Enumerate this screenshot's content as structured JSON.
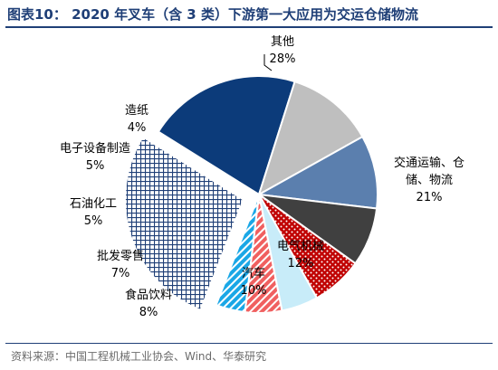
{
  "title": "图表10： 2020 年叉车（含 3 类）下游第一大应用为交运仓储物流",
  "source": "资料来源：中国工程机械工业协会、Wind、华泰研究",
  "chart_data": {
    "type": "pie",
    "title": "图表10： 2020 年叉车（含 3 类）下游第一大应用为交运仓储物流",
    "unit": "%",
    "slices": [
      {
        "label": "交通运输、仓储、物流",
        "lines": [
          "交通运输、仓",
          "储、物流"
        ],
        "value": 21,
        "value_label": "21%",
        "color": "#0c3b7a",
        "pattern": "solid"
      },
      {
        "label": "电气机械",
        "lines": [
          "电气机械"
        ],
        "value": 12,
        "value_label": "12%",
        "color": "#bfbfbf",
        "pattern": "solid"
      },
      {
        "label": "汽车",
        "lines": [
          "汽车"
        ],
        "value": 10,
        "value_label": "10%",
        "color": "#5b7fae",
        "pattern": "solid"
      },
      {
        "label": "食品饮料",
        "lines": [
          "食品饮料"
        ],
        "value": 8,
        "value_label": "8%",
        "color": "#404040",
        "pattern": "solid"
      },
      {
        "label": "批发零售",
        "lines": [
          "批发零售"
        ],
        "value": 7,
        "value_label": "7%",
        "color": "#c00000",
        "pattern": "dots"
      },
      {
        "label": "石油化工",
        "lines": [
          "石油化工"
        ],
        "value": 5,
        "value_label": "5%",
        "color": "#c8ecf9",
        "pattern": "solid"
      },
      {
        "label": "电子设备制造",
        "lines": [
          "电子设备制造"
        ],
        "value": 5,
        "value_label": "5%",
        "color": "#f06060",
        "pattern": "stripes"
      },
      {
        "label": "造纸",
        "lines": [
          "造纸"
        ],
        "value": 4,
        "value_label": "4%",
        "color": "#1aa7e6",
        "pattern": "stripes"
      },
      {
        "label": "其他",
        "lines": [
          "其他"
        ],
        "value": 28,
        "value_label": "28%",
        "color": "#1f3f77",
        "pattern": "grid"
      }
    ]
  }
}
